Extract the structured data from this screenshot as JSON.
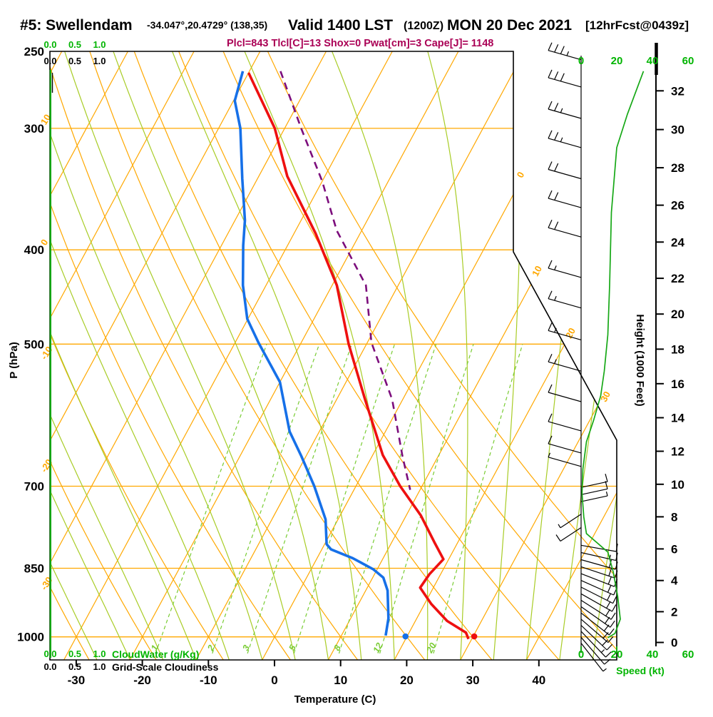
{
  "title": {
    "station": "#5: Swellendam",
    "coords": "-34.047°,20.4729° (138,35)",
    "valid_label": "Valid 1400 LST",
    "valid_zulu": "(1200Z)",
    "valid_date": "MON 20 Dec 2021",
    "forecast_tag": "[12hrFcst@0439z]"
  },
  "params": {
    "text": "Plcl=843 Tlcl[C]=13 Shox=0 Pwat[cm]=3 Cape[J]= 1148"
  },
  "axes": {
    "pressure": {
      "label": "P (hPa)",
      "ticks": [
        250,
        300,
        400,
        500,
        700,
        850,
        1000
      ]
    },
    "temperature": {
      "label": "Temperature (C)",
      "ticks": [
        -30,
        -20,
        -10,
        0,
        10,
        20,
        30,
        40
      ]
    },
    "height": {
      "label": "Height (1000 Feet)",
      "ticks": [
        0,
        2,
        4,
        6,
        8,
        10,
        12,
        14,
        16,
        18,
        20,
        22,
        24,
        26,
        28,
        30,
        32
      ]
    },
    "speed": {
      "label": "Speed (kt)",
      "ticks": [
        0,
        20,
        40,
        60
      ]
    },
    "cloudwater": {
      "label": "CloudWater (g/Kg)",
      "ticks": [
        "0.0",
        "0.5",
        "1.0"
      ]
    },
    "cloudiness": {
      "label": "Grid-Scale Cloudiness",
      "ticks": [
        "0.0",
        "0.5",
        "1.0"
      ]
    }
  },
  "grid_labels": {
    "dry_adiabats_left": [
      10,
      0,
      -10,
      -20,
      -30
    ],
    "isotherms_right": [
      0,
      10,
      20,
      30
    ],
    "mixing_ratio": [
      1,
      2,
      3,
      5,
      8,
      12,
      20
    ]
  },
  "colors": {
    "grid_orange": "#ffa800",
    "moist_adiabat_green": "#a8cc25",
    "mixing_green": "#79cc33",
    "profile_green": "#16a816",
    "speed_label_green": "#00b400",
    "temperature_red": "#ee1010",
    "dewpoint_blue": "#1670e8",
    "parcel_purple": "#7c0d7c",
    "params_magenta": "#aa0055"
  },
  "chart_data": {
    "type": "skewt-sounding",
    "pressure_unit": "hPa",
    "temperature_unit": "C",
    "pressure_range": [
      250,
      1050
    ],
    "temperature_axis_range": [
      -30,
      40
    ],
    "height_axis_unit": "1000 Feet",
    "series": [
      {
        "name": "temperature",
        "color": "#ee1010",
        "points": [
          [
            263,
            -50
          ],
          [
            300,
            -41.5
          ],
          [
            336,
            -35.7
          ],
          [
            385,
            -26.7
          ],
          [
            435,
            -19.3
          ],
          [
            500,
            -12.7
          ],
          [
            570,
            -5.7
          ],
          [
            650,
            1.5
          ],
          [
            700,
            6.7
          ],
          [
            750,
            12.2
          ],
          [
            800,
            16.5
          ],
          [
            832,
            19.2
          ],
          [
            862,
            18.3
          ],
          [
            890,
            18.0
          ],
          [
            925,
            21.0
          ],
          [
            963,
            24.8
          ],
          [
            990,
            28.6
          ],
          [
            1005,
            29.5
          ]
        ]
      },
      {
        "name": "dewpoint",
        "color": "#1670e8",
        "points": [
          [
            262,
            -51
          ],
          [
            281,
            -49.8
          ],
          [
            300,
            -46.7
          ],
          [
            338,
            -42.3
          ],
          [
            373,
            -38.5
          ],
          [
            396,
            -36.7
          ],
          [
            435,
            -33.5
          ],
          [
            471,
            -30.1
          ],
          [
            498,
            -26.5
          ],
          [
            547,
            -20.0
          ],
          [
            615,
            -14.5
          ],
          [
            652,
            -10.7
          ],
          [
            700,
            -6.3
          ],
          [
            757,
            -1.9
          ],
          [
            803,
            0.3
          ],
          [
            813,
            1.4
          ],
          [
            830,
            5.4
          ],
          [
            852,
            9.4
          ],
          [
            869,
            11.6
          ],
          [
            896,
            13.3
          ],
          [
            957,
            15.7
          ],
          [
            997,
            16.7
          ]
        ]
      },
      {
        "name": "parcel_path",
        "color": "#7c0d7c",
        "style": "dashed",
        "points": [
          [
            262,
            -45.3
          ],
          [
            300,
            -37.5
          ],
          [
            340,
            -30.0
          ],
          [
            382,
            -23.8
          ],
          [
            435,
            -14.9
          ],
          [
            498,
            -9.4
          ],
          [
            570,
            -1.6
          ],
          [
            652,
            4.6
          ],
          [
            706,
            8.5
          ]
        ]
      },
      {
        "name": "wind_speed_kt",
        "color": "#16a816",
        "points": [
          [
            262,
            35
          ],
          [
            290,
            26
          ],
          [
            314,
            20
          ],
          [
            366,
            17
          ],
          [
            435,
            16
          ],
          [
            489,
            15
          ],
          [
            533,
            13
          ],
          [
            565,
            11
          ],
          [
            599,
            7
          ],
          [
            630,
            3
          ],
          [
            672,
            1
          ],
          [
            712,
            0.5
          ],
          [
            753,
            1.5
          ],
          [
            783,
            3
          ],
          [
            818,
            15
          ],
          [
            857,
            18
          ],
          [
            908,
            20.5
          ],
          [
            959,
            22
          ],
          [
            992,
            19
          ],
          [
            1002,
            15
          ]
        ]
      }
    ],
    "surface_points": [
      {
        "name": "surface_temperature_dot",
        "pressure": 1000,
        "value": 30.2,
        "color": "#ee1010"
      },
      {
        "name": "surface_dewpoint_dot",
        "pressure": 1000,
        "value": 19.8,
        "color": "#1670e8"
      }
    ],
    "winds": {
      "west_barbs": {
        "pressures": [
          255,
          272,
          293,
          314,
          338,
          362,
          388,
          427,
          459,
          495,
          533,
          573,
          614,
          647,
          668
        ],
        "feathers": [
          3.5,
          3,
          2.5,
          2.5,
          2,
          2,
          2,
          1.5,
          1.5,
          1.5,
          1.5,
          1,
          1,
          1,
          0.5
        ]
      },
      "east_up_barbs": {
        "pressures": [
          702,
          714,
          726
        ],
        "feathers": [
          1,
          1,
          0.5
        ]
      },
      "sw_barbs": {
        "pressures": [
          748,
          772
        ],
        "feathers": [
          0.5,
          1
        ]
      },
      "east_down_barbs": {
        "pressures": [
          805,
          819,
          833,
          847,
          861,
          875,
          889,
          903,
          917,
          931,
          945,
          959,
          973,
          987,
          1001,
          1015
        ],
        "feathers": [
          1,
          1.5,
          2,
          2,
          2,
          2,
          2,
          2,
          2,
          2,
          2,
          2,
          2,
          1.5,
          1,
          0.5
        ]
      }
    },
    "cloudwater_profile": {
      "value": 0.0,
      "note": "hugs 0.0 axis full depth"
    },
    "cloudiness_profile": {
      "value": 0.05,
      "pressure_top": 265,
      "pressure_bottom": 285
    }
  }
}
